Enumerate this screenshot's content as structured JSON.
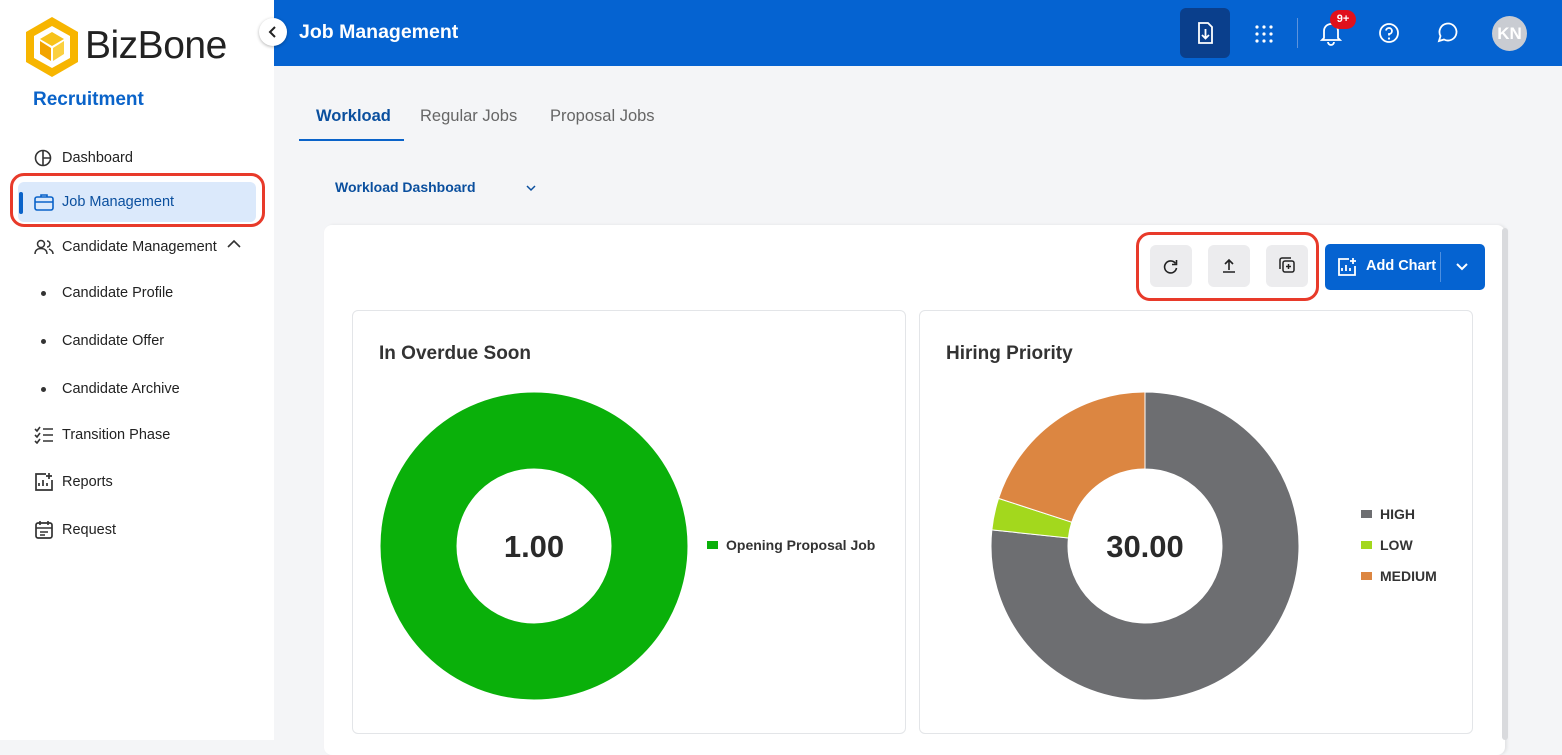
{
  "sidebar": {
    "logo": "BizBone",
    "module": "Recruitment",
    "menu": [
      "Dashboard",
      "Job Management",
      "Candidate Management",
      "Candidate Profile",
      "Candidate Offer",
      "Candidate Archive",
      "Transition Phase",
      "Reports",
      "Request"
    ]
  },
  "header": {
    "title": "Job Management",
    "notification_badge": "9+",
    "avatar": "KN"
  },
  "tabs": [
    "Workload",
    "Regular Jobs",
    "Proposal Jobs"
  ],
  "dashboard_select": "Workload Dashboard",
  "toolbar": {
    "add_chart": "Add Chart"
  },
  "chart_data": [
    {
      "type": "donut",
      "title": "In Overdue Soon",
      "center_label": "1.00",
      "categories": [
        "Opening Proposal Job"
      ],
      "values": [
        1
      ],
      "colors": [
        "#0ab00a"
      ],
      "legend": "right"
    },
    {
      "type": "donut",
      "title": "Hiring Priority",
      "center_label": "30.00",
      "categories": [
        "HIGH",
        "LOW",
        "MEDIUM"
      ],
      "values": [
        23,
        1,
        6
      ],
      "colors": [
        "#6d6e71",
        "#a3d81d",
        "#dc8641"
      ],
      "legend": "right"
    }
  ]
}
